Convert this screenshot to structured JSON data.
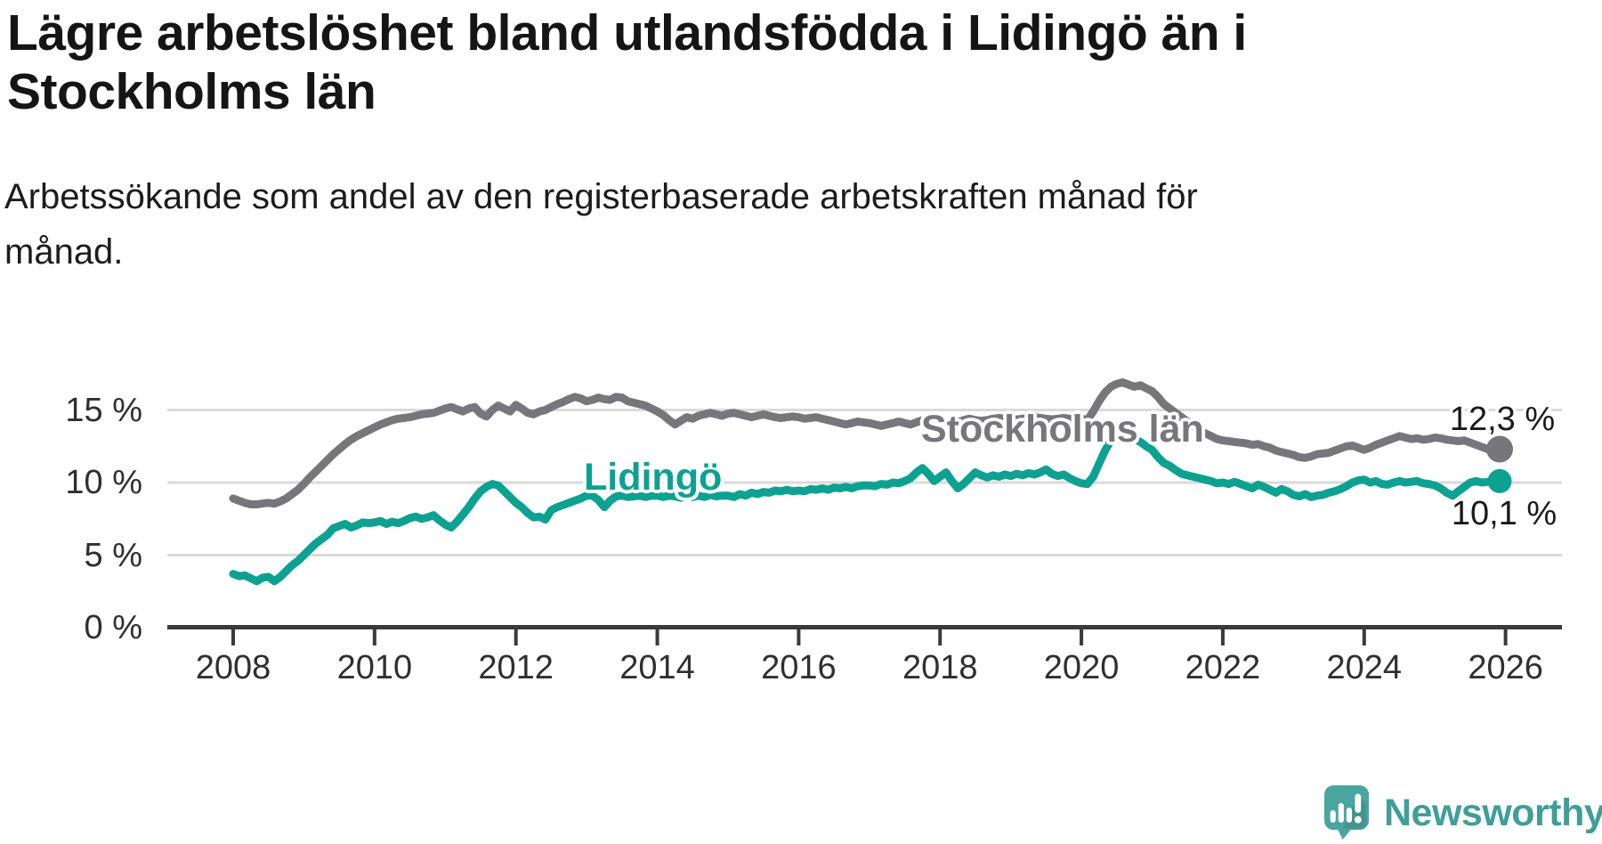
{
  "header": {
    "title_line1": "Lägre arbetslöshet bland utlandsfödda i Lidingö än i",
    "title_line2": "Stockholms län",
    "subtitle_line1": "Arbetssökande som andel av den registerbaserade arbetskraften månad för",
    "subtitle_line2": "månad."
  },
  "branding": {
    "logo_text": "Newsworthy",
    "brand_color": "#3f9e98",
    "icon": "speech-bubble-bar-chart"
  },
  "chart_data": {
    "type": "line",
    "title": "Lägre arbetslöshet bland utlandsfödda i Lidingö än i Stockholms län",
    "subtitle": "Arbetssökande som andel av den registerbaserade arbetskraften månad för månad.",
    "unit": "%",
    "frequency": "monthly",
    "start": "2008-01",
    "end": "2025-12",
    "grid": "horizontal-only",
    "legend": "inline-series-labels",
    "ylim": [
      0,
      17.5
    ],
    "x_ticks": [
      {
        "label": "2008",
        "year": 2008
      },
      {
        "label": "2010",
        "year": 2010
      },
      {
        "label": "2012",
        "year": 2012
      },
      {
        "label": "2014",
        "year": 2014
      },
      {
        "label": "2016",
        "year": 2016
      },
      {
        "label": "2018",
        "year": 2018
      },
      {
        "label": "2020",
        "year": 2020
      },
      {
        "label": "2022",
        "year": 2022
      },
      {
        "label": "2024",
        "year": 2024
      },
      {
        "label": "2026",
        "year": 2026
      }
    ],
    "y_ticks": [
      {
        "label": "0 %",
        "value": 0
      },
      {
        "label": "5 %",
        "value": 5
      },
      {
        "label": "10 %",
        "value": 10
      },
      {
        "label": "15 %",
        "value": 15
      }
    ],
    "series": [
      {
        "name": "Stockholms län",
        "color": "#76767b",
        "end_label": "12,3 %",
        "end_value": 12.3,
        "values": [
          8.9,
          8.75,
          8.6,
          8.5,
          8.5,
          8.55,
          8.6,
          8.55,
          8.7,
          8.9,
          9.2,
          9.5,
          9.9,
          10.35,
          10.75,
          11.15,
          11.55,
          11.95,
          12.3,
          12.65,
          12.95,
          13.2,
          13.4,
          13.6,
          13.8,
          14.0,
          14.15,
          14.3,
          14.4,
          14.45,
          14.5,
          14.6,
          14.7,
          14.75,
          14.8,
          14.95,
          15.1,
          15.2,
          15.05,
          14.9,
          15.1,
          15.2,
          14.75,
          14.55,
          15.0,
          15.3,
          15.1,
          14.9,
          15.35,
          15.1,
          14.8,
          14.7,
          14.9,
          15.0,
          15.2,
          15.4,
          15.55,
          15.75,
          15.9,
          15.8,
          15.6,
          15.7,
          15.85,
          15.75,
          15.7,
          15.9,
          15.85,
          15.6,
          15.5,
          15.4,
          15.3,
          15.1,
          14.9,
          14.65,
          14.3,
          14.0,
          14.25,
          14.5,
          14.4,
          14.6,
          14.7,
          14.8,
          14.7,
          14.6,
          14.75,
          14.8,
          14.7,
          14.6,
          14.5,
          14.6,
          14.7,
          14.6,
          14.5,
          14.45,
          14.5,
          14.55,
          14.5,
          14.4,
          14.45,
          14.5,
          14.4,
          14.3,
          14.2,
          14.1,
          14.0,
          14.1,
          14.2,
          14.15,
          14.1,
          14.0,
          13.9,
          14.0,
          14.1,
          14.2,
          14.1,
          14.0,
          14.15,
          14.3,
          14.35,
          14.3,
          14.2,
          14.1,
          14.0,
          14.15,
          14.3,
          14.4,
          14.3,
          14.25,
          14.3,
          14.4,
          14.45,
          14.4,
          14.3,
          14.35,
          14.4,
          14.45,
          14.5,
          14.45,
          14.4,
          14.35,
          14.4,
          14.45,
          14.4,
          14.35,
          14.4,
          14.3,
          14.9,
          15.6,
          16.2,
          16.6,
          16.8,
          16.9,
          16.75,
          16.6,
          16.7,
          16.5,
          16.3,
          15.9,
          15.4,
          15.1,
          14.8,
          14.5,
          14.2,
          13.9,
          13.6,
          13.4,
          13.2,
          13.0,
          12.9,
          12.85,
          12.8,
          12.75,
          12.7,
          12.6,
          12.65,
          12.5,
          12.4,
          12.2,
          12.1,
          12.0,
          11.9,
          11.75,
          11.7,
          11.8,
          11.95,
          12.0,
          12.05,
          12.2,
          12.35,
          12.5,
          12.55,
          12.4,
          12.25,
          12.4,
          12.6,
          12.75,
          12.9,
          13.05,
          13.2,
          13.1,
          13.0,
          13.05,
          12.95,
          13.0,
          13.1,
          13.05,
          12.95,
          12.9,
          12.85,
          12.9,
          12.75,
          12.6,
          12.45,
          12.3,
          12.2,
          12.3
        ]
      },
      {
        "name": "Lidingö",
        "color": "#0da192",
        "end_label": "10,1 %",
        "end_value": 10.1,
        "values": [
          3.7,
          3.55,
          3.6,
          3.4,
          3.2,
          3.45,
          3.5,
          3.2,
          3.5,
          3.9,
          4.3,
          4.6,
          5.0,
          5.4,
          5.8,
          6.1,
          6.4,
          6.85,
          7.0,
          7.15,
          6.9,
          7.05,
          7.25,
          7.2,
          7.25,
          7.35,
          7.15,
          7.3,
          7.2,
          7.35,
          7.55,
          7.65,
          7.5,
          7.6,
          7.75,
          7.4,
          7.1,
          6.9,
          7.3,
          7.8,
          8.3,
          8.9,
          9.4,
          9.7,
          9.9,
          9.8,
          9.4,
          9.0,
          8.6,
          8.3,
          7.9,
          7.6,
          7.65,
          7.45,
          8.1,
          8.3,
          8.45,
          8.6,
          8.75,
          8.9,
          9.1,
          9.1,
          8.8,
          8.3,
          8.75,
          9.05,
          9.1,
          9.0,
          9.05,
          9.1,
          9.0,
          9.1,
          9.1,
          9.0,
          9.1,
          9.05,
          8.95,
          9.05,
          9.0,
          9.1,
          9.0,
          9.15,
          9.05,
          9.1,
          9.1,
          9.0,
          9.2,
          9.1,
          9.3,
          9.2,
          9.35,
          9.3,
          9.45,
          9.4,
          9.5,
          9.4,
          9.45,
          9.4,
          9.55,
          9.5,
          9.6,
          9.5,
          9.65,
          9.6,
          9.7,
          9.6,
          9.75,
          9.8,
          9.8,
          9.75,
          9.9,
          9.85,
          10.0,
          9.95,
          10.1,
          10.3,
          10.7,
          11.0,
          10.6,
          10.1,
          10.4,
          10.7,
          10.1,
          9.6,
          9.9,
          10.3,
          10.7,
          10.5,
          10.35,
          10.5,
          10.4,
          10.55,
          10.45,
          10.6,
          10.5,
          10.65,
          10.55,
          10.7,
          10.9,
          10.6,
          10.45,
          10.55,
          10.3,
          10.1,
          9.95,
          9.9,
          10.4,
          11.3,
          12.2,
          12.9,
          13.3,
          13.3,
          13.2,
          13.0,
          12.8,
          12.5,
          12.25,
          11.75,
          11.35,
          11.15,
          10.85,
          10.6,
          10.5,
          10.4,
          10.3,
          10.2,
          10.1,
          9.95,
          10.0,
          9.9,
          10.05,
          9.9,
          9.75,
          9.6,
          9.85,
          9.7,
          9.5,
          9.3,
          9.55,
          9.4,
          9.15,
          9.05,
          9.2,
          9.0,
          9.1,
          9.15,
          9.3,
          9.4,
          9.55,
          9.75,
          10.0,
          10.15,
          10.2,
          10.0,
          10.1,
          9.9,
          9.85,
          10.0,
          10.1,
          10.0,
          10.05,
          10.1,
          9.95,
          9.9,
          9.8,
          9.6,
          9.3,
          9.1,
          9.4,
          9.7,
          10.0,
          10.1,
          10.0,
          10.05,
          10.1,
          10.1
        ]
      }
    ]
  }
}
